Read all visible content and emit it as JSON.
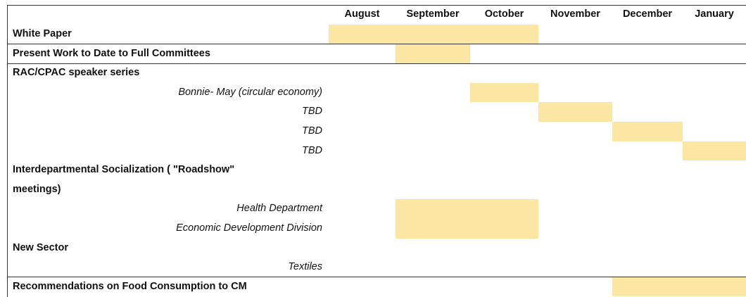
{
  "months": [
    "August",
    "September",
    "October",
    "November",
    "December",
    "January"
  ],
  "rows": [
    {
      "label": [
        "White Paper"
      ],
      "bold": true,
      "span": [
        0,
        2
      ],
      "border_top": false
    },
    {
      "label": [
        "Present Work to Date to Full Committees"
      ],
      "bold": true,
      "span": [
        1,
        1
      ],
      "border_top": true
    },
    {
      "label": [
        "RAC/CPAC speaker series"
      ],
      "bold": true,
      "span": null,
      "border_top": true
    },
    {
      "label": [
        "Bonnie- May (circular economy)"
      ],
      "bold": false,
      "span": [
        2,
        2
      ],
      "border_top": false
    },
    {
      "label": [
        "TBD"
      ],
      "bold": false,
      "span": [
        3,
        3
      ],
      "border_top": false
    },
    {
      "label": [
        "TBD"
      ],
      "bold": false,
      "span": [
        4,
        4
      ],
      "border_top": false
    },
    {
      "label": [
        "TBD"
      ],
      "bold": false,
      "span": [
        5,
        5
      ],
      "border_top": false
    },
    {
      "label": [
        "Interdepartmental Socialization ( \"Roadshow\"",
        "meetings)"
      ],
      "bold": true,
      "span": null,
      "border_top": false
    },
    {
      "label": [
        "Health Department"
      ],
      "bold": false,
      "span": [
        1,
        2
      ],
      "border_top": false
    },
    {
      "label": [
        "Economic Development Division"
      ],
      "bold": false,
      "span": [
        1,
        2
      ],
      "border_top": false
    },
    {
      "label": [
        "New Sector"
      ],
      "bold": true,
      "span": null,
      "border_top": false
    },
    {
      "label": [
        "Textiles"
      ],
      "bold": false,
      "span": null,
      "border_top": false
    },
    {
      "label": [
        "Recommendations on Food Consumption to CM"
      ],
      "bold": true,
      "span": [
        4,
        5
      ],
      "border_top": true
    }
  ]
}
